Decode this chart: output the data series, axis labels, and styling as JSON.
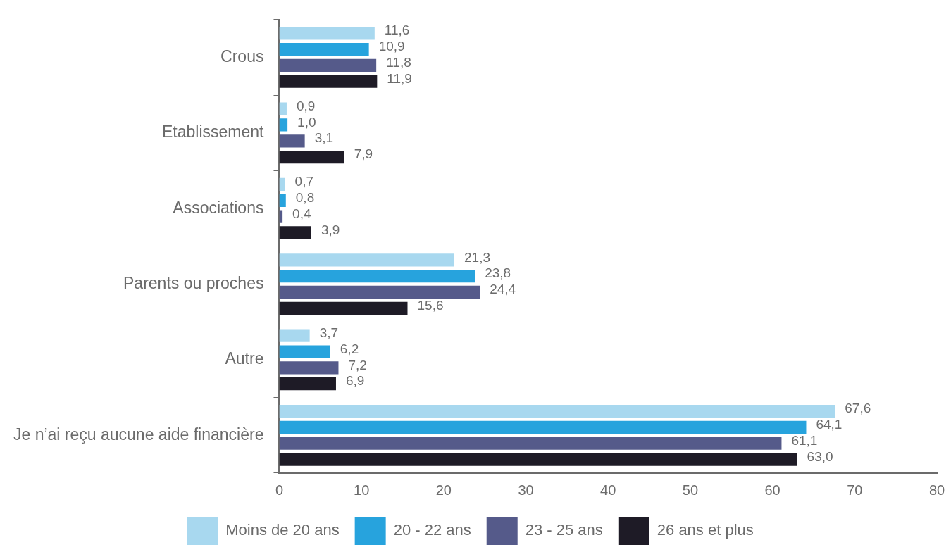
{
  "chart_data": {
    "type": "bar",
    "orientation": "horizontal",
    "categories": [
      "Crous",
      "Etablissement",
      "Associations",
      "Parents ou proches",
      "Autre",
      "Je n’ai reçu aucune aide financière"
    ],
    "series": [
      {
        "name": "Moins de 20 ans",
        "color": "#a8d8ef",
        "values": [
          11.6,
          0.9,
          0.7,
          21.3,
          3.7,
          67.6
        ],
        "value_labels": [
          "11,6",
          "0,9",
          "0,7",
          "21,3",
          "3,7",
          "67,6"
        ]
      },
      {
        "name": "20 - 22 ans",
        "color": "#27a3dd",
        "values": [
          10.9,
          1.0,
          0.8,
          23.8,
          6.2,
          64.1
        ],
        "value_labels": [
          "10,9",
          "1,0",
          "0,8",
          "23,8",
          "6,2",
          "64,1"
        ]
      },
      {
        "name": "23 - 25 ans",
        "color": "#555a8a",
        "values": [
          11.8,
          3.1,
          0.4,
          24.4,
          7.2,
          61.1
        ],
        "value_labels": [
          "11,8",
          "3,1",
          "0,4",
          "24,4",
          "7,2",
          "61,1"
        ]
      },
      {
        "name": "26 ans et plus",
        "color": "#1e1b26",
        "values": [
          11.9,
          7.9,
          3.9,
          15.6,
          6.9,
          63.0
        ],
        "value_labels": [
          "11,9",
          "7,9",
          "3,9",
          "15,6",
          "6,9",
          "63,0"
        ]
      }
    ],
    "xlim": [
      0,
      80
    ],
    "xticks": [
      0,
      10,
      20,
      30,
      40,
      50,
      60,
      70,
      80
    ],
    "grid": false,
    "legend": "bottom"
  }
}
